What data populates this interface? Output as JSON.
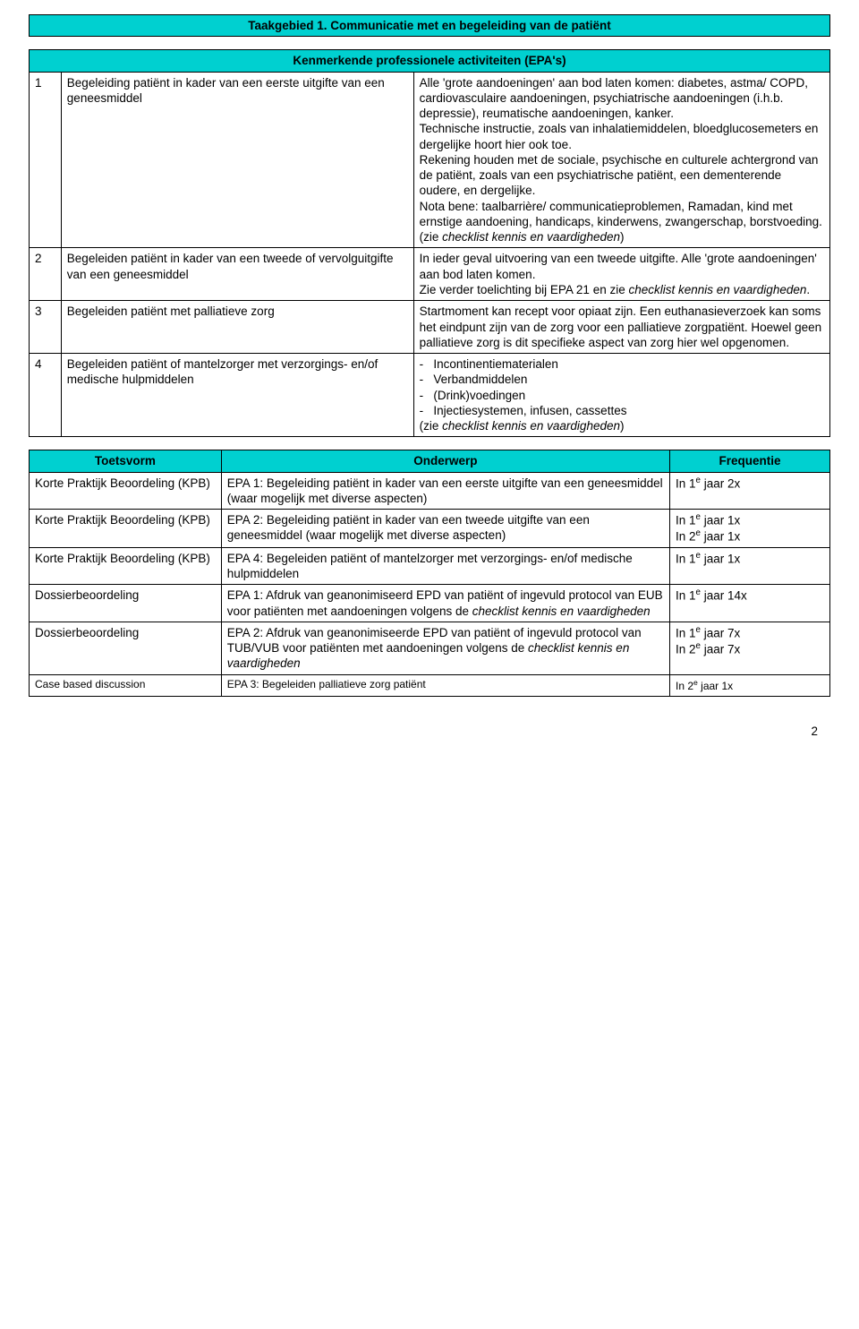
{
  "colors": {
    "header_bg": "#00d0d0",
    "border": "#000000",
    "text": "#000000",
    "page_bg": "#ffffff"
  },
  "typography": {
    "font_family": "Arial",
    "base_fontsize_pt": 10.5,
    "line_height": 1.28,
    "header_weight": "bold"
  },
  "title_bar": "Taakgebied 1. Communicatie met en begeleiding van de patiënt",
  "epa_header": "Kenmerkende professionele activiteiten (EPA's)",
  "epa_rows": [
    {
      "num": "1",
      "left": "Begeleiding patiënt in kader van een eerste uitgifte van een geneesmiddel",
      "right_html": "Alle 'grote aandoeningen' aan bod laten komen: diabetes, astma/ COPD, cardiovasculaire aandoeningen, psychiatrische aandoeningen (i.h.b. depressie), reumatische aandoeningen, kanker.<br>Technische instructie, zoals van inhalatiemiddelen, bloedglucosemeters en dergelijke hoort hier ook toe.<br>Rekening houden met de sociale, psychische en culturele achtergrond van de patiënt, zoals van een psychiatrische patiënt, een dementerende oudere, en dergelijke.<br>Nota bene: taalbarrière/ communicatieproblemen, Ramadan, kind met ernstige aandoening, handicaps, kinderwens, zwangerschap, borstvoeding. (zie <span class=\"ital\">checklist kennis en vaardigheden</span>)"
    },
    {
      "num": "2",
      "left": "Begeleiden patiënt in kader van een tweede of vervolguitgifte van een geneesmiddel",
      "right_html": "In ieder geval uitvoering van een tweede uitgifte. Alle 'grote aandoeningen' aan bod laten komen.<br>Zie verder toelichting bij EPA 21 en zie <span class=\"ital\">checklist kennis en vaardigheden</span>."
    },
    {
      "num": "3",
      "left": "Begeleiden patiënt met palliatieve zorg",
      "right_html": "Startmoment kan recept voor opiaat zijn. Een euthanasieverzoek kan soms het eindpunt zijn van de zorg voor een palliatieve zorgpatiënt. Hoewel geen palliatieve zorg is dit specifieke aspect van zorg hier wel opgenomen."
    },
    {
      "num": "4",
      "left": "Begeleiden patiënt of mantelzorger met verzorgings- en/of medische hulpmiddelen",
      "right_html": "-&nbsp;&nbsp;&nbsp;Incontinentiematerialen<br>-&nbsp;&nbsp;&nbsp;Verbandmiddelen<br>-&nbsp;&nbsp;&nbsp;(Drink)voedingen<br>-&nbsp;&nbsp;&nbsp;Injectiesystemen, infusen, cassettes<br>(zie <span class=\"ital\">checklist kennis en vaardigheden</span>)"
    }
  ],
  "assess_headers": [
    "Toetsvorm",
    "Onderwerp",
    "Frequentie"
  ],
  "assess_rows": [
    {
      "c0": "Korte Praktijk Beoordeling (KPB)",
      "c1_html": "EPA 1: Begeleiding patiënt in kader van een eerste uitgifte van een geneesmiddel (waar mogelijk met diverse aspecten)",
      "c2_html": "In 1<span class=\"sup\">e</span> jaar 2x"
    },
    {
      "c0": "Korte Praktijk Beoordeling (KPB)",
      "c1_html": "EPA 2: Begeleiding patiënt in kader van een tweede uitgifte van een geneesmiddel (waar mogelijk met diverse aspecten)",
      "c2_html": "In 1<span class=\"sup\">e</span> jaar 1x<br>In 2<span class=\"sup\">e</span> jaar 1x"
    },
    {
      "c0": "Korte Praktijk Beoordeling (KPB)",
      "c1_html": "EPA 4: Begeleiden patiënt of mantelzorger met verzorgings- en/of medische hulpmiddelen",
      "c2_html": "In 1<span class=\"sup\">e</span> jaar 1x"
    },
    {
      "c0": "Dossierbeoordeling",
      "c1_html": "EPA 1: Afdruk van geanonimiseerd EPD van patiënt of ingevuld protocol van EUB voor patiënten met aandoeningen volgens de <span class=\"ital\">checklist kennis en vaardigheden</span>",
      "c2_html": "In 1<span class=\"sup\">e</span> jaar 14x"
    },
    {
      "c0": "Dossierbeoordeling",
      "c1_html": "EPA 2: Afdruk van geanonimiseerde EPD van patiënt of ingevuld protocol van TUB/VUB voor patiënten met aandoeningen volgens de <span class=\"ital\">checklist kennis en vaardigheden</span>",
      "c2_html": "In 1<span class=\"sup\">e</span> jaar 7x<br>In 2<span class=\"sup\">e</span> jaar 7x"
    },
    {
      "c0": "Case based discussion",
      "c1_html": "EPA 3: Begeleiden palliatieve zorg patiënt",
      "c2_html": "In 2<span class=\"sup\">e</span> jaar 1x"
    }
  ],
  "page_number": "2"
}
